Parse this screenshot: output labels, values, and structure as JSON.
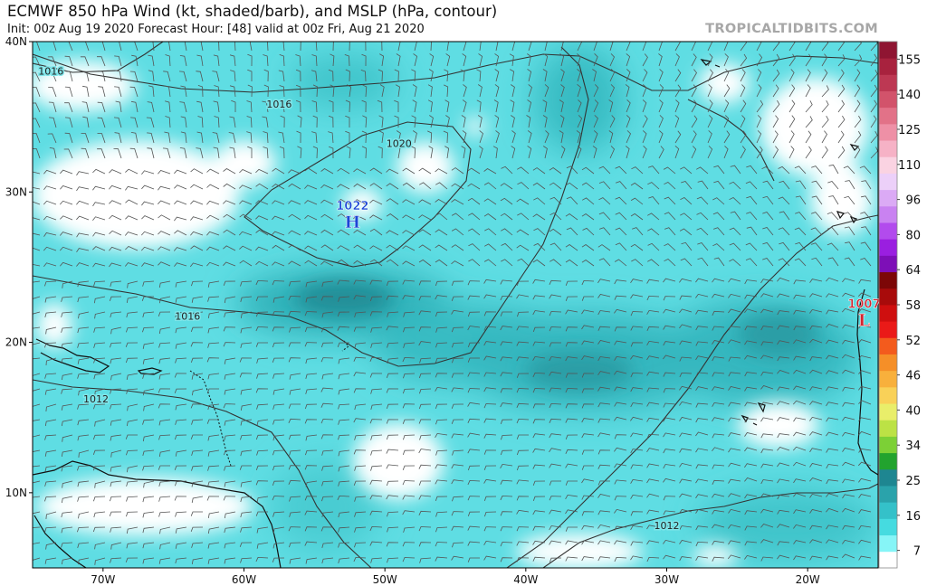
{
  "header": {
    "title": "ECMWF 850 hPa Wind (kt, shaded/barb), and MSLP (hPa, contour)",
    "subtitle": "Init: 00z Aug 19 2020   Forecast Hour: [48]   valid at 00z Fri, Aug 21 2020",
    "brand": "TROPICALTIDBITS.COM"
  },
  "axes": {
    "lat_labels": [
      {
        "value": 40,
        "label": "40N"
      },
      {
        "value": 30,
        "label": "30N"
      },
      {
        "value": 20,
        "label": "20N"
      },
      {
        "value": 10,
        "label": "10N"
      }
    ],
    "lon_labels": [
      {
        "value": -70,
        "label": "70W"
      },
      {
        "value": -60,
        "label": "60W"
      },
      {
        "value": -50,
        "label": "50W"
      },
      {
        "value": -40,
        "label": "40W"
      },
      {
        "value": -30,
        "label": "30W"
      },
      {
        "value": -20,
        "label": "20W"
      }
    ],
    "lon_range": [
      -75,
      -15
    ],
    "lat_range": [
      5,
      40
    ]
  },
  "colorbar": {
    "labels": [
      "7",
      "16",
      "25",
      "34",
      "40",
      "46",
      "52",
      "58",
      "64",
      "80",
      "96",
      "110",
      "125",
      "140",
      "155"
    ],
    "colors": [
      "#ffffff",
      "#86f5f7",
      "#45dbe0",
      "#34c1c9",
      "#2aa3ab",
      "#1e8691",
      "#22a32e",
      "#7cd036",
      "#bce245",
      "#e9ee6a",
      "#f9d158",
      "#f8b03c",
      "#f58f28",
      "#f35b1d",
      "#ea1a18",
      "#cf0f0f",
      "#a80b0b",
      "#7c0707",
      "#7d0fb7",
      "#9a1fe0",
      "#b24bed",
      "#c982f1",
      "#dbaaf5",
      "#ecd0f9",
      "#fad3e2",
      "#f6b2c6",
      "#ee90a6",
      "#e27288",
      "#d2536b",
      "#bd3853",
      "#a8223e",
      "#8f1532"
    ]
  },
  "pressure_centers": [
    {
      "type": "H",
      "value": "1022",
      "lon": -52.3,
      "lat": 28.2,
      "color": "#1a46d6"
    },
    {
      "type": "L",
      "value": "1007",
      "lon": -16.0,
      "lat": 21.7,
      "color": "#d32430"
    }
  ],
  "isobar_labels": [
    {
      "text": "1016",
      "lon": -73.7,
      "lat": 37.8
    },
    {
      "text": "1016",
      "lon": -57.5,
      "lat": 35.6
    },
    {
      "text": "1020",
      "lon": -49.0,
      "lat": 33.0
    },
    {
      "text": "1016",
      "lon": -64.0,
      "lat": 21.5
    },
    {
      "text": "1012",
      "lon": -70.5,
      "lat": 16.0
    },
    {
      "text": "1012",
      "lon": -30.0,
      "lat": 7.6
    }
  ],
  "layers": {
    "shading": "850 hPa wind speed (kt)",
    "barbs": "850 hPa wind barbs",
    "contours": "MSLP (hPa)"
  }
}
